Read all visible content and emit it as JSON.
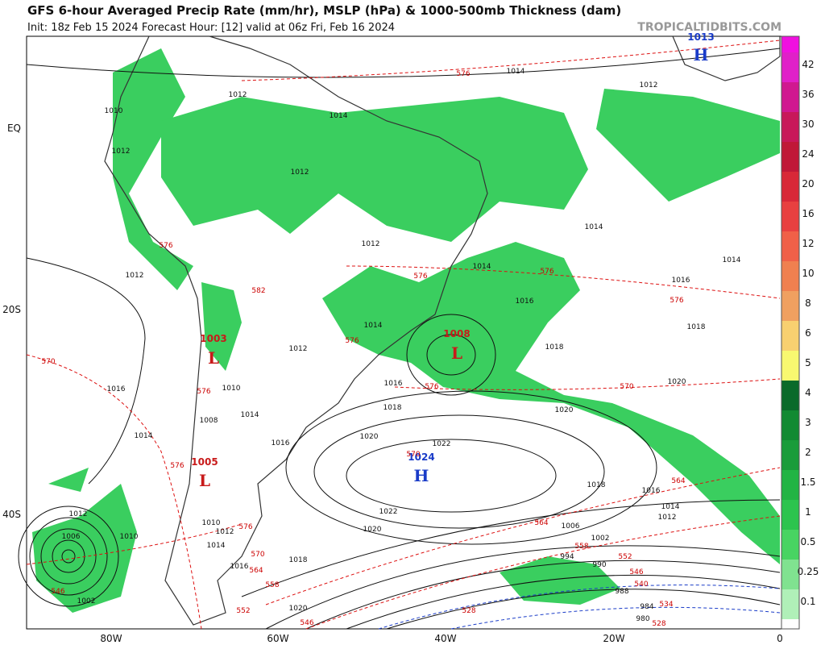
{
  "header": {
    "title": "GFS 6-hour Averaged Precip Rate (mm/hr), MSLP (hPa) & 1000-500mb Thickness (dam)",
    "subtitle": "Init: 18z Feb 15 2024   Forecast Hour: [12]   valid at 06z Fri, Feb 16 2024",
    "site": "TROPICALTIDBITS.COM"
  },
  "axes": {
    "lon": [
      "80W",
      "60W",
      "40W",
      "20W",
      "0"
    ],
    "lat": [
      "EQ",
      "20S",
      "40S"
    ]
  },
  "colorbar": {
    "labels": [
      "42",
      "36",
      "30",
      "24",
      "20",
      "16",
      "12",
      "10",
      "8",
      "6",
      "5",
      "4",
      "3",
      "2",
      "1.5",
      "1",
      "0.5",
      "0.25",
      "0.1"
    ]
  },
  "systems": [
    {
      "symbol": "H",
      "pressure": "1013"
    },
    {
      "symbol": "L",
      "pressure": "1008"
    },
    {
      "symbol": "H",
      "pressure": "1024"
    },
    {
      "symbol": "L",
      "pressure": "1003"
    },
    {
      "symbol": "L",
      "pressure": "1005"
    }
  ],
  "isobar_labels": [
    "1014",
    "1012",
    "1014",
    "1012",
    "1012",
    "1014",
    "1014",
    "1014",
    "1016",
    "1016",
    "1018",
    "1018",
    "1020",
    "1020",
    "1022",
    "1020",
    "1018",
    "1016",
    "1014",
    "1012",
    "1006",
    "1002",
    "994",
    "990",
    "988",
    "984",
    "980",
    "1022",
    "1020",
    "1018",
    "1020",
    "1016",
    "1014",
    "1012",
    "1010",
    "1016",
    "1014",
    "1010",
    "1008",
    "1012",
    "1014",
    "1016",
    "1018",
    "1012",
    "1016",
    "1014",
    "1012",
    "1010",
    "1006",
    "1002",
    "1012",
    "1010",
    "1012"
  ],
  "thickness_labels": [
    "576",
    "576",
    "582",
    "576",
    "576",
    "576",
    "570",
    "576",
    "576",
    "570",
    "576",
    "576",
    "570",
    "564",
    "564",
    "558",
    "552",
    "546",
    "540",
    "534",
    "528",
    "528",
    "576",
    "570",
    "564",
    "558",
    "552",
    "546",
    "546"
  ]
}
